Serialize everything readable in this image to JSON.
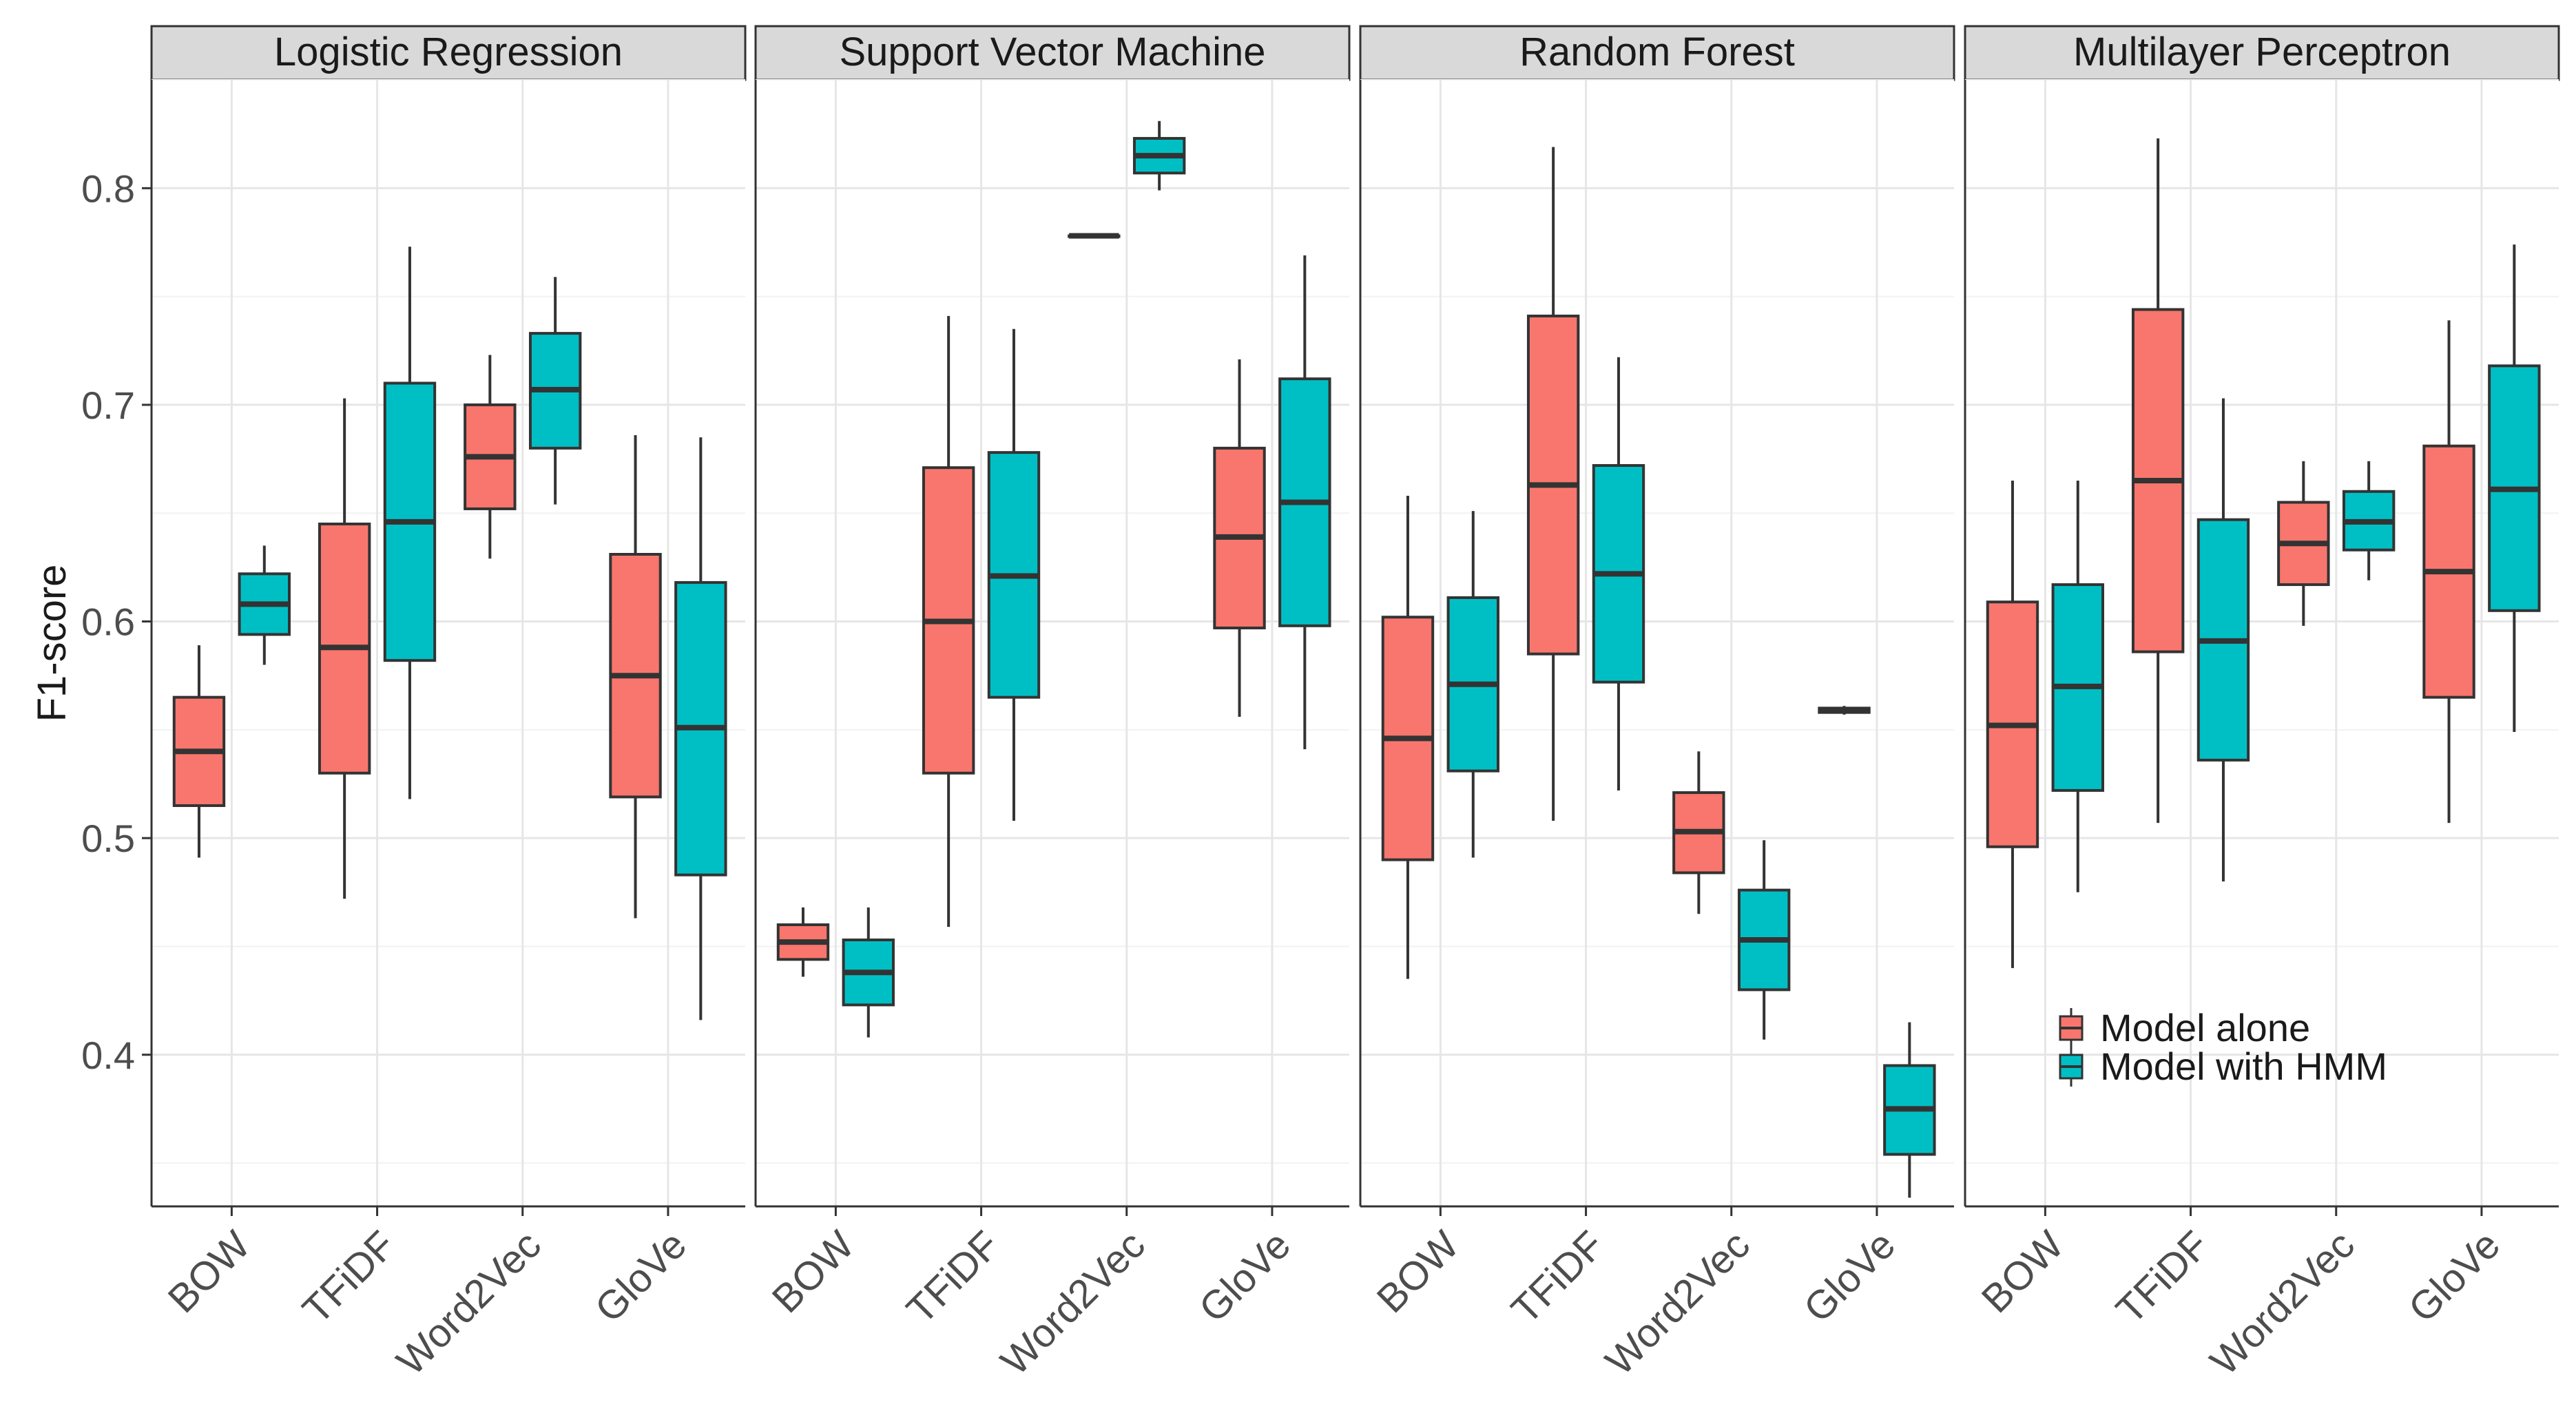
{
  "chart_data": {
    "type": "boxplot",
    "ylabel": "F1-score",
    "xlabel": "",
    "ylim": [
      0.33,
      0.85
    ],
    "yticks": [
      0.4,
      0.5,
      0.6,
      0.7,
      0.8
    ],
    "ytick_labels": [
      "0.4",
      "0.5",
      "0.6",
      "0.7",
      "0.8"
    ],
    "categories": [
      "BOW",
      "TFiDF",
      "Word2Vec",
      "GloVe"
    ],
    "grid": true,
    "legend": {
      "position": "bottom-right of last panel",
      "entries": [
        {
          "name": "Model alone",
          "color": "#F8766D"
        },
        {
          "name": "Model with HMM",
          "color": "#00BFC4"
        }
      ]
    },
    "series_colors": {
      "Model alone": "#F8766D",
      "Model with HMM": "#00BFC4"
    },
    "panels": [
      {
        "title": "Logistic Regression",
        "boxes": [
          {
            "category": "BOW",
            "series": "Model alone",
            "min": 0.491,
            "q1": 0.515,
            "median": 0.54,
            "q3": 0.565,
            "max": 0.589
          },
          {
            "category": "BOW",
            "series": "Model with HMM",
            "min": 0.58,
            "q1": 0.594,
            "median": 0.608,
            "q3": 0.622,
            "max": 0.635
          },
          {
            "category": "TFiDF",
            "series": "Model alone",
            "min": 0.472,
            "q1": 0.53,
            "median": 0.588,
            "q3": 0.645,
            "max": 0.703
          },
          {
            "category": "TFiDF",
            "series": "Model with HMM",
            "min": 0.518,
            "q1": 0.582,
            "median": 0.646,
            "q3": 0.71,
            "max": 0.773
          },
          {
            "category": "Word2Vec",
            "series": "Model alone",
            "min": 0.629,
            "q1": 0.652,
            "median": 0.676,
            "q3": 0.7,
            "max": 0.723
          },
          {
            "category": "Word2Vec",
            "series": "Model with HMM",
            "min": 0.654,
            "q1": 0.68,
            "median": 0.707,
            "q3": 0.733,
            "max": 0.759
          },
          {
            "category": "GloVe",
            "series": "Model alone",
            "min": 0.463,
            "q1": 0.519,
            "median": 0.575,
            "q3": 0.631,
            "max": 0.686
          },
          {
            "category": "GloVe",
            "series": "Model with HMM",
            "min": 0.416,
            "q1": 0.483,
            "median": 0.551,
            "q3": 0.618,
            "max": 0.685
          }
        ]
      },
      {
        "title": "Support Vector Machine",
        "boxes": [
          {
            "category": "BOW",
            "series": "Model alone",
            "min": 0.436,
            "q1": 0.444,
            "median": 0.452,
            "q3": 0.46,
            "max": 0.468
          },
          {
            "category": "BOW",
            "series": "Model with HMM",
            "min": 0.408,
            "q1": 0.423,
            "median": 0.438,
            "q3": 0.453,
            "max": 0.468
          },
          {
            "category": "TFiDF",
            "series": "Model alone",
            "min": 0.459,
            "q1": 0.53,
            "median": 0.6,
            "q3": 0.671,
            "max": 0.741
          },
          {
            "category": "TFiDF",
            "series": "Model with HMM",
            "min": 0.508,
            "q1": 0.565,
            "median": 0.621,
            "q3": 0.678,
            "max": 0.735
          },
          {
            "category": "Word2Vec",
            "series": "Model alone",
            "min": 0.778,
            "q1": 0.778,
            "median": 0.778,
            "q3": 0.778,
            "max": 0.778
          },
          {
            "category": "Word2Vec",
            "series": "Model with HMM",
            "min": 0.799,
            "q1": 0.807,
            "median": 0.815,
            "q3": 0.823,
            "max": 0.831
          },
          {
            "category": "GloVe",
            "series": "Model alone",
            "min": 0.556,
            "q1": 0.597,
            "median": 0.639,
            "q3": 0.68,
            "max": 0.721
          },
          {
            "category": "GloVe",
            "series": "Model with HMM",
            "min": 0.541,
            "q1": 0.598,
            "median": 0.655,
            "q3": 0.712,
            "max": 0.769
          }
        ]
      },
      {
        "title": "Random Forest",
        "boxes": [
          {
            "category": "BOW",
            "series": "Model alone",
            "min": 0.435,
            "q1": 0.49,
            "median": 0.546,
            "q3": 0.602,
            "max": 0.658
          },
          {
            "category": "BOW",
            "series": "Model with HMM",
            "min": 0.491,
            "q1": 0.531,
            "median": 0.571,
            "q3": 0.611,
            "max": 0.651
          },
          {
            "category": "TFiDF",
            "series": "Model alone",
            "min": 0.508,
            "q1": 0.585,
            "median": 0.663,
            "q3": 0.741,
            "max": 0.819
          },
          {
            "category": "TFiDF",
            "series": "Model with HMM",
            "min": 0.522,
            "q1": 0.572,
            "median": 0.622,
            "q3": 0.672,
            "max": 0.722
          },
          {
            "category": "Word2Vec",
            "series": "Model alone",
            "min": 0.465,
            "q1": 0.484,
            "median": 0.503,
            "q3": 0.521,
            "max": 0.54
          },
          {
            "category": "Word2Vec",
            "series": "Model with HMM",
            "min": 0.407,
            "q1": 0.43,
            "median": 0.453,
            "q3": 0.476,
            "max": 0.499
          },
          {
            "category": "GloVe",
            "series": "Model alone",
            "min": 0.557,
            "q1": 0.558,
            "median": 0.559,
            "q3": 0.56,
            "max": 0.561
          },
          {
            "category": "GloVe",
            "series": "Model with HMM",
            "min": 0.334,
            "q1": 0.354,
            "median": 0.375,
            "q3": 0.395,
            "max": 0.415
          }
        ]
      },
      {
        "title": "Multilayer Perceptron",
        "boxes": [
          {
            "category": "BOW",
            "series": "Model alone",
            "min": 0.44,
            "q1": 0.496,
            "median": 0.552,
            "q3": 0.609,
            "max": 0.665
          },
          {
            "category": "BOW",
            "series": "Model with HMM",
            "min": 0.475,
            "q1": 0.522,
            "median": 0.57,
            "q3": 0.617,
            "max": 0.665
          },
          {
            "category": "TFiDF",
            "series": "Model alone",
            "min": 0.507,
            "q1": 0.586,
            "median": 0.665,
            "q3": 0.744,
            "max": 0.823
          },
          {
            "category": "TFiDF",
            "series": "Model with HMM",
            "min": 0.48,
            "q1": 0.536,
            "median": 0.591,
            "q3": 0.647,
            "max": 0.703
          },
          {
            "category": "Word2Vec",
            "series": "Model alone",
            "min": 0.598,
            "q1": 0.617,
            "median": 0.636,
            "q3": 0.655,
            "max": 0.674
          },
          {
            "category": "Word2Vec",
            "series": "Model with HMM",
            "min": 0.619,
            "q1": 0.633,
            "median": 0.646,
            "q3": 0.66,
            "max": 0.674
          },
          {
            "category": "GloVe",
            "series": "Model alone",
            "min": 0.507,
            "q1": 0.565,
            "median": 0.623,
            "q3": 0.681,
            "max": 0.739
          },
          {
            "category": "GloVe",
            "series": "Model with HMM",
            "min": 0.549,
            "q1": 0.605,
            "median": 0.661,
            "q3": 0.718,
            "max": 0.774
          }
        ]
      }
    ]
  }
}
